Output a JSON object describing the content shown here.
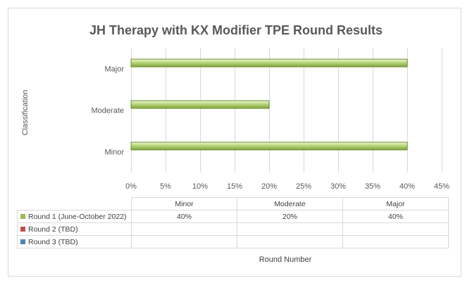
{
  "chart_data": {
    "type": "bar",
    "orientation": "horizontal",
    "title": "JH Therapy with KX Modifier TPE Round Results",
    "ylabel": "Classification",
    "xlabel": "Round Number",
    "categories": [
      "Minor",
      "Moderate",
      "Major"
    ],
    "x_ticks": [
      "0%",
      "5%",
      "10%",
      "15%",
      "20%",
      "25%",
      "30%",
      "35%",
      "40%",
      "45%"
    ],
    "xlim": [
      0,
      45
    ],
    "grid": true,
    "data_table": true,
    "series": [
      {
        "name": "Round 1 (June-October 2022)",
        "values": [
          40,
          20,
          40
        ],
        "labels": [
          "40%",
          "20%",
          "40%"
        ],
        "color": "#9bbb59"
      },
      {
        "name": "Round 2 (TBD)",
        "values": [
          null,
          null,
          null
        ],
        "labels": [
          "",
          "",
          ""
        ],
        "color": "#c0504d"
      },
      {
        "name": "Round 3 (TBD)",
        "values": [
          null,
          null,
          null
        ],
        "labels": [
          "",
          "",
          ""
        ],
        "color": "#4f81bd"
      }
    ]
  }
}
